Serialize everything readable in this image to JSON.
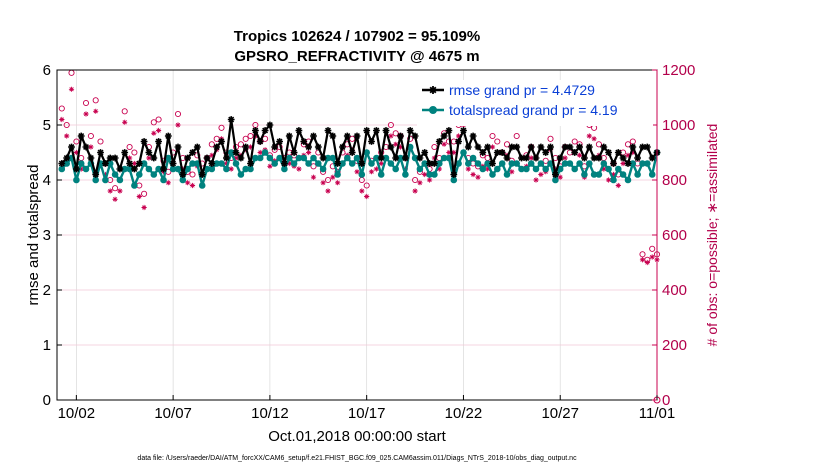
{
  "chart_data": {
    "type": "line",
    "title_lines": [
      "Tropics 102624 / 107902 = 95.109%",
      "GPSRO_REFRACTIVITY @ 4675 m"
    ],
    "xlabel": "Oct.01,2018 00:00:00 start",
    "ylabel_left": "rmse and totalspread",
    "ylabel_right": "# of obs: o=possible; ∗=assimilated",
    "footer": "data file: /Users/raeder/DAI/ATM_forcXX/CAM6_setup/f.e21.FHIST_BGC.f09_025.CAM6assim.011/Diags_NTrS_2018-10/obs_diag_output.nc",
    "x_range": [
      0,
      31
    ],
    "x_ticks": [
      {
        "value": 1,
        "label": "10/02"
      },
      {
        "value": 6,
        "label": "10/07"
      },
      {
        "value": 11,
        "label": "10/12"
      },
      {
        "value": 16,
        "label": "10/17"
      },
      {
        "value": 21,
        "label": "10/22"
      },
      {
        "value": 26,
        "label": "10/27"
      },
      {
        "value": 31,
        "label": "11/01"
      }
    ],
    "ylim_left": [
      0,
      6
    ],
    "y_ticks_left": [
      0,
      1,
      2,
      3,
      4,
      5,
      6
    ],
    "ylim_right": [
      0,
      1200
    ],
    "y_ticks_right": [
      0,
      200,
      400,
      600,
      800,
      1000,
      1200
    ],
    "colors": {
      "rmse": "#000000",
      "spread": "#00827f",
      "obs": "#c8004f",
      "legend_text": "#0a3fd6",
      "grid_right": "#f2c9d6"
    },
    "legend": [
      {
        "key": "rmse",
        "label": "rmse grand pr = 4.4729"
      },
      {
        "key": "spread",
        "label": "totalspread grand pr = 4.19"
      }
    ],
    "x_start": 0.25,
    "x_step": 0.25,
    "series": [
      {
        "name": "rmse",
        "marker": "star",
        "values": [
          4.3,
          4.4,
          4.6,
          4.2,
          4.8,
          4.6,
          4.4,
          4.1,
          4.5,
          4.3,
          4.4,
          4.4,
          4.2,
          4.5,
          4.3,
          4.2,
          4.3,
          4.7,
          4.5,
          4.4,
          4.7,
          4.2,
          4.8,
          4.3,
          4.6,
          4.1,
          4.4,
          4.5,
          4.6,
          4.1,
          4.4,
          4.3,
          4.6,
          4.7,
          4.4,
          5.1,
          4.5,
          4.4,
          4.6,
          4.3,
          4.9,
          4.7,
          4.9,
          5.0,
          4.6,
          4.7,
          4.3,
          4.8,
          4.5,
          4.9,
          4.7,
          4.6,
          4.8,
          4.6,
          4.4,
          4.9,
          4.8,
          4.3,
          4.6,
          4.8,
          4.5,
          4.8,
          4.3,
          4.9,
          4.7,
          4.9,
          4.4,
          4.9,
          4.6,
          4.4,
          4.8,
          4.4,
          4.9,
          4.8,
          4.4,
          4.5,
          4.3,
          4.3,
          4.7,
          4.8,
          4.9,
          4.1,
          4.7,
          4.9,
          4.6,
          4.8,
          4.6,
          4.5,
          4.6,
          4.3,
          4.5,
          4.5,
          4.4,
          4.6,
          4.6,
          4.4,
          4.4,
          4.6,
          4.4,
          4.6,
          4.5,
          4.6,
          4.1,
          4.4,
          4.6,
          4.6,
          4.5,
          4.6,
          4.4,
          4.6,
          4.4,
          4.4,
          4.6,
          4.5,
          4.3,
          4.5,
          4.4,
          4.3,
          4.6,
          4.4,
          4.6,
          4.6,
          4.4,
          4.5
        ]
      },
      {
        "name": "totalspread",
        "marker": "circle",
        "values": [
          4.2,
          4.3,
          4.4,
          4.0,
          4.3,
          4.2,
          4.3,
          4.0,
          4.3,
          4.0,
          4.3,
          4.1,
          4.0,
          4.2,
          4.2,
          3.9,
          4.1,
          4.3,
          4.2,
          4.1,
          4.2,
          4.0,
          4.4,
          4.2,
          4.2,
          4.0,
          4.2,
          4.3,
          4.3,
          3.9,
          4.2,
          4.2,
          4.3,
          4.3,
          4.2,
          4.5,
          4.3,
          4.1,
          4.2,
          4.2,
          4.4,
          4.4,
          4.5,
          4.4,
          4.3,
          4.4,
          4.2,
          4.4,
          4.3,
          4.4,
          4.4,
          4.3,
          4.4,
          4.3,
          4.2,
          4.4,
          4.4,
          4.1,
          4.3,
          4.4,
          4.3,
          4.4,
          4.1,
          4.5,
          4.3,
          4.4,
          4.1,
          4.4,
          4.3,
          4.2,
          4.4,
          4.1,
          4.6,
          4.4,
          4.2,
          4.3,
          4.1,
          4.1,
          4.3,
          4.4,
          4.4,
          4.0,
          4.3,
          4.5,
          4.3,
          4.4,
          4.3,
          4.2,
          4.3,
          4.1,
          4.2,
          4.3,
          4.1,
          4.3,
          4.3,
          4.2,
          4.2,
          4.3,
          4.2,
          4.3,
          4.2,
          4.3,
          4.0,
          4.2,
          4.3,
          4.3,
          4.2,
          4.3,
          4.1,
          4.3,
          4.1,
          4.1,
          4.3,
          4.2,
          4.0,
          4.2,
          4.1,
          4.0,
          4.3,
          4.1,
          4.3,
          4.3,
          4.1,
          4.5
        ]
      },
      {
        "name": "obs_possible",
        "marker": "o",
        "values": [
          1060,
          1000,
          1190,
          940,
          880,
          1080,
          960,
          1090,
          940,
          860,
          800,
          770,
          800,
          1050,
          920,
          900,
          780,
          750,
          920,
          1010,
          1020,
          870,
          830,
          900,
          1040,
          880,
          830,
          820,
          890,
          860,
          880,
          930,
          950,
          990,
          900,
          880,
          920,
          930,
          950,
          960,
          1000,
          940,
          950,
          890,
          910,
          920,
          880,
          900,
          890,
          880,
          930,
          940,
          850,
          900,
          830,
          800,
          850,
          830,
          900,
          930,
          950,
          870,
          800,
          780,
          870,
          880,
          900,
          920,
          1000,
          970,
          960,
          880,
          950,
          800,
          830,
          860,
          840,
          920,
          880,
          970,
          940,
          940,
          1000,
          1040,
          880,
          860,
          850,
          890,
          880,
          960,
          940,
          900,
          930,
          870,
          960,
          1050,
          890,
          920,
          840,
          860,
          870,
          950,
          880,
          850,
          920,
          900,
          940,
          930,
          850,
          1000,
          990,
          930,
          880,
          840,
          860,
          820,
          900,
          930,
          940,
          860,
          530,
          510,
          550,
          530
        ]
      },
      {
        "name": "obs_assimilated",
        "marker": "star",
        "values": [
          1020,
          960,
          1130,
          900,
          840,
          1040,
          920,
          1050,
          900,
          820,
          760,
          730,
          760,
          1010,
          880,
          860,
          740,
          700,
          880,
          970,
          980,
          830,
          790,
          860,
          1000,
          840,
          790,
          780,
          850,
          820,
          840,
          890,
          910,
          950,
          860,
          840,
          880,
          890,
          910,
          920,
          960,
          900,
          910,
          850,
          870,
          880,
          840,
          860,
          850,
          840,
          890,
          900,
          810,
          860,
          790,
          760,
          810,
          790,
          860,
          890,
          910,
          830,
          760,
          740,
          830,
          840,
          860,
          880,
          960,
          930,
          920,
          840,
          910,
          760,
          790,
          820,
          800,
          880,
          840,
          930,
          900,
          900,
          960,
          1000,
          840,
          820,
          810,
          850,
          840,
          920,
          900,
          860,
          890,
          830,
          920,
          1010,
          850,
          880,
          800,
          820,
          830,
          910,
          840,
          810,
          880,
          860,
          900,
          890,
          810,
          960,
          950,
          890,
          840,
          800,
          820,
          780,
          860,
          890,
          900,
          820,
          510,
          500,
          520,
          510
        ]
      }
    ]
  }
}
